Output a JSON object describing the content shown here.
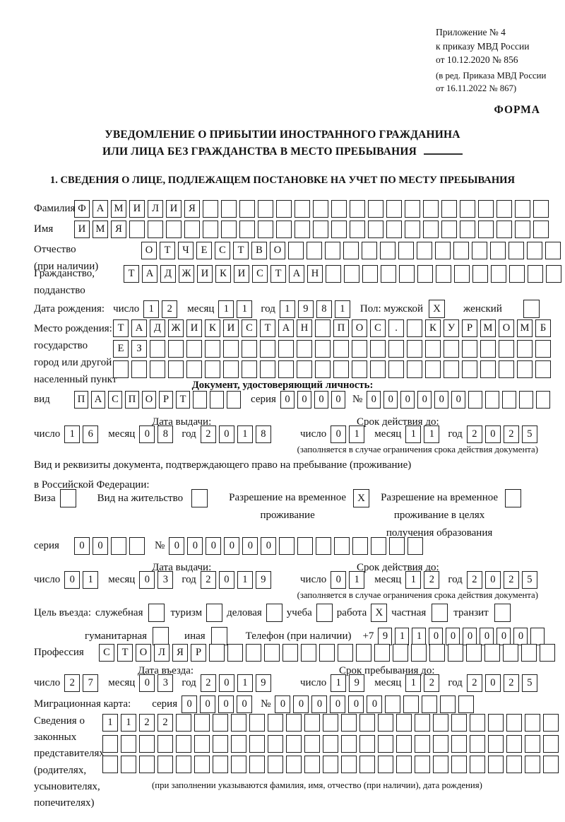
{
  "header": {
    "appendix_line1": "Приложение № 4",
    "appendix_line2": "к приказу МВД России",
    "appendix_line3": "от 10.12.2020 № 856",
    "edition_line1": "(в ред. Приказа МВД России",
    "edition_line2": "от 16.11.2022 № 867)",
    "form_label": "ФОРМА"
  },
  "title": {
    "line1": "УВЕДОМЛЕНИЕ О ПРИБЫТИИ ИНОСТРАННОГО ГРАЖДАНИНА",
    "line2": "ИЛИ ЛИЦА БЕЗ ГРАЖДАНСТВА В МЕСТО ПРЕБЫВАНИЯ"
  },
  "section1_heading": "1. СВЕДЕНИЯ О ЛИЦЕ, ПОДЛЕЖАЩЕМ ПОСТАНОВКЕ НА УЧЕТ ПО МЕСТУ ПРЕБЫВАНИЯ",
  "labels": {
    "day": "число",
    "month": "месяц",
    "year": "год",
    "series": "серия",
    "number": "№",
    "issue_date": "Дата выдачи:",
    "validity": "Срок действия до:",
    "validity_note": "(заполняется в случае ограничения срока действия документа)"
  },
  "person": {
    "surname": {
      "label": "Фамилия",
      "text": "ФАМИЛИЯ",
      "count": 26
    },
    "name": {
      "label": "Имя",
      "text": "ИМЯ",
      "count": 26
    },
    "patronymic": {
      "label1": "Отчество",
      "label2": "(при наличии)",
      "text": "ОТЧЕСТВО",
      "count": 23
    },
    "citizenship": {
      "label1": "Гражданство,",
      "label2": "подданство",
      "text": "ТАДЖИКИСТАН",
      "count": 24
    },
    "birth_date": {
      "label": "Дата рождения:",
      "day": {
        "text": "12",
        "count": 2
      },
      "month": {
        "text": "11",
        "count": 2
      },
      "year": {
        "text": "1981",
        "count": 4
      }
    },
    "sex": {
      "label": "Пол: мужской",
      "male": "X",
      "female_label": "женский",
      "female": ""
    },
    "birth_place": {
      "label1": "Место рождения:",
      "label2": "государство",
      "label3": "город или другой",
      "label4": "населенный пункт",
      "row1": {
        "text": "ТАДЖИКИСТАН ПОС. КУРМОМБ",
        "count": 24
      },
      "row2": {
        "text": "ЕЗ",
        "count": 24
      },
      "row3": {
        "text": "",
        "count": 24
      }
    }
  },
  "identity_doc": {
    "heading": "Документ, удостоверяющий личность:",
    "kind_label": "вид",
    "kind": {
      "text": "ПАСПОРТ",
      "count": 10
    },
    "series": {
      "text": "0000",
      "count": 4
    },
    "number": {
      "text": "000000",
      "count": 11
    },
    "issue": {
      "day": {
        "text": "16",
        "count": 2
      },
      "month": {
        "text": "08",
        "count": 2
      },
      "year": {
        "text": "2018",
        "count": 4
      }
    },
    "expiry": {
      "day": {
        "text": "01",
        "count": 2
      },
      "month": {
        "text": "11",
        "count": 2
      },
      "year": {
        "text": "2025",
        "count": 4
      }
    }
  },
  "stay_doc": {
    "intro_line1": "Вид и реквизиты документа, подтверждающего право на пребывание (проживание)",
    "intro_line2": "в Российской Федерации:",
    "visa_label": "Виза",
    "visa_checked": "",
    "residence_label": "Вид на жительство",
    "residence_checked": "",
    "rvp_line1": "Разрешение на временное",
    "rvp_line2": "проживание",
    "rvp_checked": "X",
    "rvp_edu_line1": "Разрешение на временное",
    "rvp_edu_line2": "проживание в целях",
    "rvp_edu_line3": "получения образования",
    "rvp_edu_checked": "",
    "series": {
      "text": "00",
      "count": 4
    },
    "number": {
      "text": "000000",
      "count": 14
    },
    "issue": {
      "day": {
        "text": "01",
        "count": 2
      },
      "month": {
        "text": "03",
        "count": 2
      },
      "year": {
        "text": "2019",
        "count": 4
      }
    },
    "expiry": {
      "day": {
        "text": "01",
        "count": 2
      },
      "month": {
        "text": "12",
        "count": 2
      },
      "year": {
        "text": "2025",
        "count": 4
      }
    }
  },
  "visit": {
    "purpose_label": "Цель въезда:",
    "purposes": [
      {
        "label": "служебная",
        "checked": ""
      },
      {
        "label": "туризм",
        "checked": ""
      },
      {
        "label": "деловая",
        "checked": ""
      },
      {
        "label": "учеба",
        "checked": ""
      },
      {
        "label": "работа",
        "checked": "X"
      },
      {
        "label": "частная",
        "checked": ""
      },
      {
        "label": "транзит",
        "checked": ""
      },
      {
        "label": "гуманитарная",
        "checked": ""
      },
      {
        "label": "иная",
        "checked": ""
      }
    ],
    "phone_label": "Телефон (при наличии)",
    "phone_prefix": "+7",
    "phone": {
      "text": "911000000",
      "count": 10
    },
    "profession_label": "Профессия",
    "profession": {
      "text": "СТОЛЯР",
      "count": 25
    },
    "entry_date_label": "Дата въезда:",
    "entry": {
      "day": {
        "text": "27",
        "count": 2
      },
      "month": {
        "text": "03",
        "count": 2
      },
      "year": {
        "text": "2019",
        "count": 4
      }
    },
    "stay_until_label": "Срок пребывания до:",
    "stay": {
      "day": {
        "text": "19",
        "count": 2
      },
      "month": {
        "text": "12",
        "count": 2
      },
      "year": {
        "text": "2025",
        "count": 4
      }
    }
  },
  "migration_card": {
    "label": "Миграционная карта:",
    "series": {
      "text": "0000",
      "count": 4
    },
    "number": {
      "text": "000000",
      "count": 11
    }
  },
  "representatives": {
    "label1": "Сведения о",
    "label2": "законных",
    "label3": "представителях",
    "label4": "(родителях,",
    "label5": "усыновителях,",
    "label6": "попечителях)",
    "row1": {
      "text": "1122",
      "count": 25
    },
    "row2": {
      "text": "",
      "count": 25
    },
    "row3": {
      "text": "",
      "count": 25
    },
    "caption": "(при заполнении указываются фамилия, имя, отчество (при наличии), дата рождения)"
  }
}
